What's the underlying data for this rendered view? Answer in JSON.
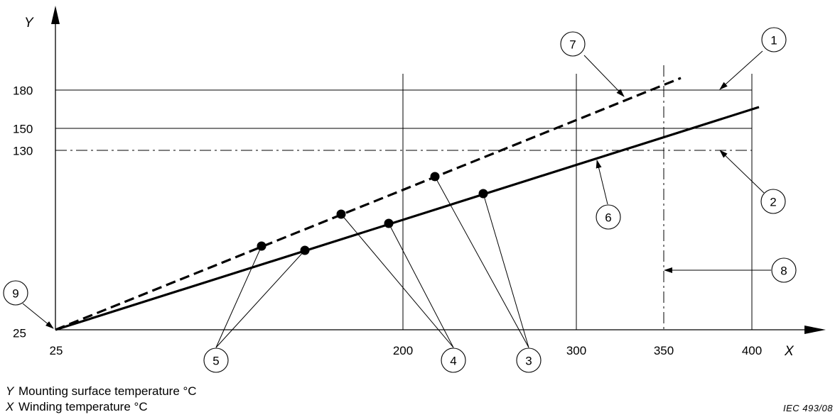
{
  "axes": {
    "y_symbol": "Y",
    "x_symbol": "X",
    "y_ticks": [
      "180",
      "150",
      "130",
      "25"
    ],
    "x_ticks": [
      "25",
      "200",
      "300",
      "350",
      "400"
    ]
  },
  "callouts": [
    "1",
    "2",
    "3",
    "4",
    "5",
    "6",
    "7",
    "8",
    "9"
  ],
  "legend": {
    "y": {
      "symbol": "Y",
      "text": "Mounting surface temperature °C"
    },
    "x": {
      "symbol": "X",
      "text": "Winding temperature °C"
    }
  },
  "reference": "IEC  493/08",
  "chart_data": {
    "type": "line",
    "xlabel": "X",
    "ylabel": "Y",
    "series": [
      {
        "style": "solid",
        "x": [
          25,
          405
        ],
        "y": [
          25,
          167
        ]
      },
      {
        "style": "dashed",
        "x": [
          25,
          360
        ],
        "y": [
          25,
          190
        ]
      }
    ],
    "reference_lines": [
      {
        "axis": "y",
        "value": 180,
        "style": "solid"
      },
      {
        "axis": "y",
        "value": 150,
        "style": "solid"
      },
      {
        "axis": "y",
        "value": 130,
        "style": "dash-dot"
      },
      {
        "axis": "x",
        "value": 200,
        "style": "solid"
      },
      {
        "axis": "x",
        "value": 300,
        "style": "solid"
      },
      {
        "axis": "x",
        "value": 350,
        "style": "dash-dot"
      },
      {
        "axis": "x",
        "value": 400,
        "style": "solid"
      }
    ]
  }
}
